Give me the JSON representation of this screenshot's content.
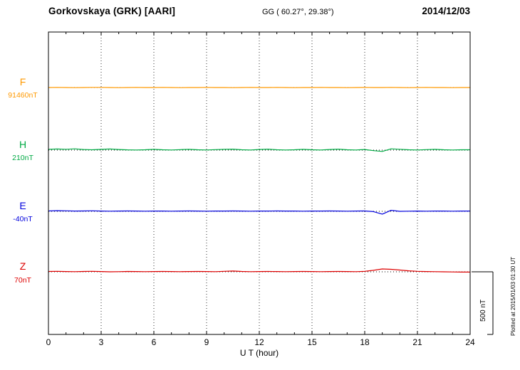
{
  "header": {
    "station_title": "Gorkovskaya (GRK)  [AARI]",
    "gg_coords": "GG ( 60.27°,  29.38°)",
    "date": "2014/12/03"
  },
  "axis": {
    "x_title": "U T (hour)",
    "x_ticks": [
      0,
      3,
      6,
      9,
      12,
      15,
      18,
      21,
      24
    ]
  },
  "scale_bar": {
    "label": "500 nT",
    "span_nT": 500
  },
  "footnote": "Plotted at 2015/01/03 01:30 UT",
  "chart_data": {
    "type": "line",
    "title": "Gorkovskaya (GRK) [AARI] magnetogram 2014/12/03",
    "xlabel": "U T (hour)",
    "ylabel": "",
    "x_range": [
      0,
      24
    ],
    "x_step_hours": 0.5,
    "grid": "vertical-dotted-every-3h",
    "legend_position": "left-margin",
    "series": [
      {
        "name": "F",
        "color": "#ff9900",
        "base_label": "91460nT",
        "base": 91460,
        "values": [
          91460,
          91461,
          91460,
          91459,
          91460,
          91461,
          91461,
          91460,
          91459,
          91460,
          91461,
          91460,
          91460,
          91461,
          91460,
          91459,
          91460,
          91460,
          91461,
          91460,
          91460,
          91459,
          91460,
          91461,
          91460,
          91460,
          91461,
          91460,
          91459,
          91460,
          91460,
          91461,
          91460,
          91460,
          91459,
          91460,
          91461,
          91460,
          91460,
          91461,
          91460,
          91459,
          91460,
          91461,
          91460,
          91460,
          91459,
          91460,
          91460
        ]
      },
      {
        "name": "H",
        "color": "#00aa44",
        "base_label": "210nT",
        "base": 210,
        "values": [
          216,
          219,
          217,
          220,
          215,
          213,
          216,
          219,
          215,
          212,
          211,
          213,
          216,
          213,
          211,
          214,
          216,
          213,
          211,
          214,
          216,
          218,
          213,
          211,
          215,
          218,
          213,
          211,
          213,
          216,
          213,
          211,
          215,
          218,
          213,
          211,
          215,
          206,
          200,
          220,
          217,
          213,
          211,
          214,
          216,
          213,
          211,
          213,
          213
        ]
      },
      {
        "name": "E",
        "color": "#0000dd",
        "base_label": "-40nT",
        "base": -40,
        "values": [
          -37,
          -35,
          -36,
          -38,
          -37,
          -36,
          -38,
          -39,
          -38,
          -37,
          -38,
          -39,
          -38,
          -38,
          -39,
          -38,
          -37,
          -38,
          -39,
          -38,
          -38,
          -37,
          -38,
          -39,
          -38,
          -38,
          -37,
          -38,
          -38,
          -39,
          -38,
          -38,
          -37,
          -38,
          -39,
          -38,
          -37,
          -42,
          -62,
          -32,
          -40,
          -39,
          -38,
          -39,
          -38,
          -38,
          -39,
          -38,
          -38
        ]
      },
      {
        "name": "Z",
        "color": "#dd0000",
        "base_label": "70nT",
        "base": 70,
        "values": [
          73,
          74,
          72,
          71,
          73,
          74,
          72,
          70,
          71,
          73,
          72,
          71,
          72,
          73,
          72,
          71,
          72,
          73,
          72,
          71,
          74,
          76,
          73,
          71,
          72,
          73,
          72,
          71,
          72,
          73,
          72,
          71,
          72,
          73,
          72,
          71,
          74,
          82,
          93,
          90,
          84,
          78,
          74,
          72,
          71,
          70,
          69,
          68,
          68
        ]
      }
    ]
  }
}
